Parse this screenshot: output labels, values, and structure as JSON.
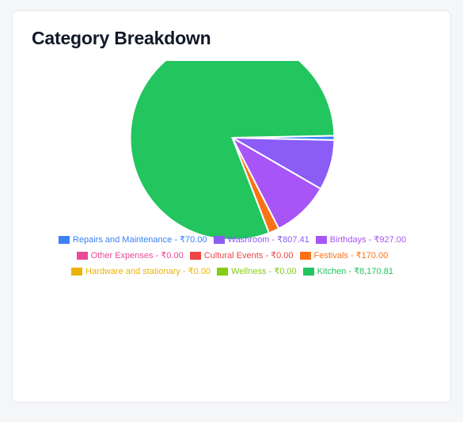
{
  "card": {
    "title": "Category Breakdown"
  },
  "chart_data": {
    "type": "pie",
    "title": "Category Breakdown",
    "currency": "₹",
    "slices": [
      {
        "label": "Repairs and Maintenance",
        "value": 70.0,
        "display": "Repairs and Maintenance - ₹70.00",
        "color": "#3b82f6"
      },
      {
        "label": "Washroom",
        "value": 807.41,
        "display": "Washroom - ₹807.41",
        "color": "#8b5cf6"
      },
      {
        "label": "Birthdays",
        "value": 927.0,
        "display": "Birthdays - ₹927.00",
        "color": "#a855f7"
      },
      {
        "label": "Other Expenses",
        "value": 0.0,
        "display": "Other Expenses - ₹0.00",
        "color": "#ec4899"
      },
      {
        "label": "Cultural Events",
        "value": 0.0,
        "display": "Cultural Events - ₹0.00",
        "color": "#ef4444"
      },
      {
        "label": "Festivals",
        "value": 170.0,
        "display": "Festivals - ₹170.00",
        "color": "#f97316"
      },
      {
        "label": "Hardware and stationary",
        "value": 0.0,
        "display": "Hardware and stationary - ₹0.00",
        "color": "#eab308"
      },
      {
        "label": "Wellness",
        "value": 0.0,
        "display": "Wellness - ₹0.00",
        "color": "#84cc16"
      },
      {
        "label": "Kitchen",
        "value": 8170.81,
        "display": "Kitchen - ₹8,170.81",
        "color": "#22c55e"
      }
    ],
    "legend_position": "bottom"
  }
}
